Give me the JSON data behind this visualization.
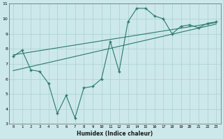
{
  "x": [
    0,
    1,
    2,
    3,
    4,
    5,
    6,
    7,
    8,
    9,
    10,
    11,
    12,
    13,
    14,
    15,
    16,
    17,
    18,
    19,
    20,
    21,
    22,
    23
  ],
  "y_data": [
    7.5,
    7.9,
    6.6,
    6.5,
    5.7,
    3.7,
    4.9,
    3.4,
    5.4,
    5.5,
    6.0,
    8.5,
    6.5,
    9.8,
    10.7,
    10.7,
    10.2,
    10.0,
    9.0,
    9.5,
    9.6,
    9.4,
    9.7,
    9.8
  ],
  "trend1_x": [
    0,
    23
  ],
  "trend1_y": [
    7.6,
    9.75
  ],
  "trend2_x": [
    0,
    23
  ],
  "trend2_y": [
    6.55,
    9.65
  ],
  "line_color": "#2a7a6a",
  "bg_color": "#cce8ea",
  "grid_color": "#aacfd4",
  "xlabel": "Humidex (Indice chaleur)",
  "ylim": [
    3,
    11
  ],
  "xlim": [
    -0.5,
    23.5
  ],
  "yticks": [
    3,
    4,
    5,
    6,
    7,
    8,
    9,
    10,
    11
  ],
  "xticks": [
    0,
    1,
    2,
    3,
    4,
    5,
    6,
    7,
    8,
    9,
    10,
    11,
    12,
    13,
    14,
    15,
    16,
    17,
    18,
    19,
    20,
    21,
    22,
    23
  ]
}
